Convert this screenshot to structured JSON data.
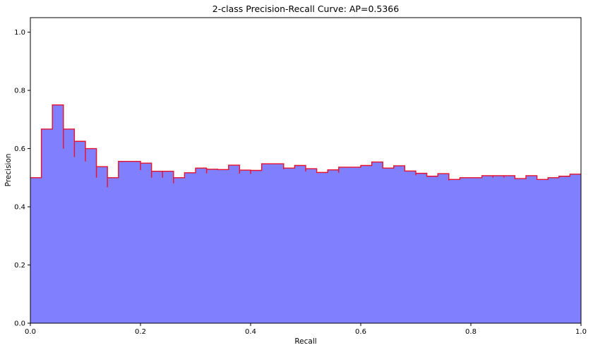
{
  "chart_data": {
    "type": "area",
    "title": "2-class Precision-Recall Curve: AP=0.5366",
    "xlabel": "Recall",
    "ylabel": "Precision",
    "xlim": [
      0,
      1
    ],
    "ylim": [
      0,
      1.05
    ],
    "xticks": [
      "0.0",
      "0.2",
      "0.4",
      "0.6",
      "0.8",
      "1.0"
    ],
    "yticks": [
      "0.0",
      "0.2",
      "0.4",
      "0.6",
      "0.8",
      "1.0"
    ],
    "grid": false,
    "fill_color": "#8080ff",
    "line_color": "#e8102a",
    "step": "post",
    "points": [
      [
        0.0,
        0.5
      ],
      [
        0.02,
        0.667
      ],
      [
        0.04,
        0.75
      ],
      [
        0.06,
        0.6
      ],
      [
        0.06,
        0.667
      ],
      [
        0.08,
        0.571
      ],
      [
        0.08,
        0.625
      ],
      [
        0.1,
        0.556
      ],
      [
        0.1,
        0.6
      ],
      [
        0.12,
        0.5
      ],
      [
        0.12,
        0.538
      ],
      [
        0.14,
        0.467
      ],
      [
        0.14,
        0.5
      ],
      [
        0.16,
        0.556
      ],
      [
        0.2,
        0.526
      ],
      [
        0.2,
        0.55
      ],
      [
        0.22,
        0.5
      ],
      [
        0.22,
        0.522
      ],
      [
        0.24,
        0.5
      ],
      [
        0.24,
        0.522
      ],
      [
        0.26,
        0.481
      ],
      [
        0.26,
        0.5
      ],
      [
        0.28,
        0.517
      ],
      [
        0.3,
        0.533
      ],
      [
        0.32,
        0.515
      ],
      [
        0.32,
        0.529
      ],
      [
        0.34,
        0.528
      ],
      [
        0.36,
        0.543
      ],
      [
        0.38,
        0.514
      ],
      [
        0.38,
        0.526
      ],
      [
        0.4,
        0.513
      ],
      [
        0.4,
        0.525
      ],
      [
        0.42,
        0.548
      ],
      [
        0.46,
        0.529
      ],
      [
        0.46,
        0.533
      ],
      [
        0.48,
        0.542
      ],
      [
        0.5,
        0.521
      ],
      [
        0.5,
        0.531
      ],
      [
        0.52,
        0.518
      ],
      [
        0.54,
        0.527
      ],
      [
        0.56,
        0.517
      ],
      [
        0.56,
        0.536
      ],
      [
        0.6,
        0.542
      ],
      [
        0.62,
        0.554
      ],
      [
        0.64,
        0.533
      ],
      [
        0.66,
        0.541
      ],
      [
        0.68,
        0.523
      ],
      [
        0.7,
        0.508
      ],
      [
        0.7,
        0.515
      ],
      [
        0.72,
        0.505
      ],
      [
        0.74,
        0.514
      ],
      [
        0.76,
        0.49
      ],
      [
        0.76,
        0.494
      ],
      [
        0.78,
        0.5
      ],
      [
        0.82,
        0.5
      ],
      [
        0.82,
        0.507
      ],
      [
        0.84,
        0.5
      ],
      [
        0.84,
        0.507
      ],
      [
        0.86,
        0.5
      ],
      [
        0.86,
        0.507
      ],
      [
        0.88,
        0.497
      ],
      [
        0.9,
        0.507
      ],
      [
        0.92,
        0.494
      ],
      [
        0.94,
        0.5
      ],
      [
        0.96,
        0.505
      ],
      [
        0.98,
        0.512
      ],
      [
        1.0,
        0.512
      ]
    ]
  }
}
